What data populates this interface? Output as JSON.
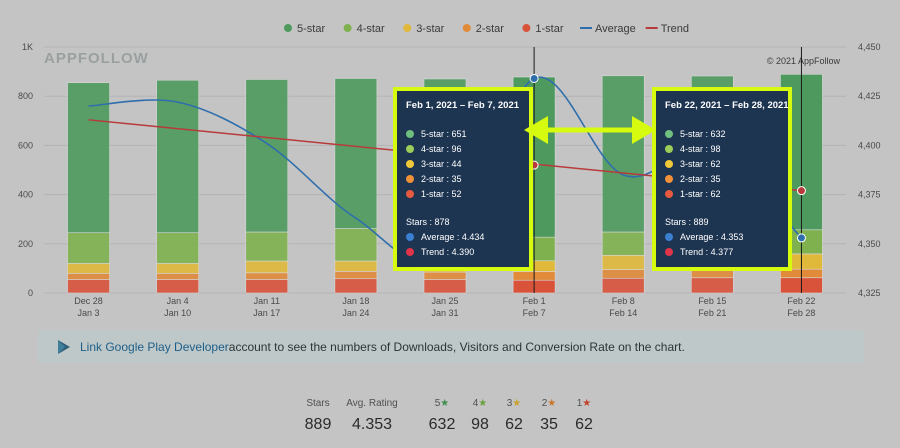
{
  "legend": [
    {
      "label": "5-star",
      "color": "#4e9a5e",
      "kind": "dot"
    },
    {
      "label": "4-star",
      "color": "#7fb24f",
      "kind": "dot"
    },
    {
      "label": "3-star",
      "color": "#e0b93a",
      "kind": "dot"
    },
    {
      "label": "2-star",
      "color": "#e08a3a",
      "kind": "dot"
    },
    {
      "label": "1-star",
      "color": "#d9533b",
      "kind": "dot"
    },
    {
      "label": "Average",
      "color": "#2f6ead",
      "kind": "line"
    },
    {
      "label": "Trend",
      "color": "#b83a3a",
      "kind": "line"
    }
  ],
  "brand": "APPFOLLOW",
  "copyright": "© 2021 AppFollow",
  "chart_data": {
    "type": "bar",
    "stacked": true,
    "categories": [
      [
        "Dec 28",
        "Jan 3"
      ],
      [
        "Jan 4",
        "Jan 10"
      ],
      [
        "Jan 11",
        "Jan 17"
      ],
      [
        "Jan 18",
        "Jan 24"
      ],
      [
        "Jan 25",
        "Jan 31"
      ],
      [
        "Feb 1",
        "Feb 7"
      ],
      [
        "Feb 8",
        "Feb 14"
      ],
      [
        "Feb 15",
        "Feb 21"
      ],
      [
        "Feb 22",
        "Feb 28"
      ]
    ],
    "series": [
      {
        "name": "1-star",
        "color": "#d9533b",
        "values": [
          55,
          55,
          55,
          58,
          55,
          52,
          60,
          62,
          62
        ]
      },
      {
        "name": "2-star",
        "color": "#e08a3a",
        "values": [
          25,
          25,
          27,
          30,
          30,
          35,
          35,
          35,
          35
        ]
      },
      {
        "name": "3-star",
        "color": "#e0b93a",
        "values": [
          40,
          40,
          48,
          42,
          45,
          44,
          58,
          60,
          62
        ]
      },
      {
        "name": "4-star",
        "color": "#7fb24f",
        "values": [
          125,
          125,
          118,
          132,
          110,
          96,
          95,
          95,
          98
        ]
      },
      {
        "name": "5-star",
        "color": "#4e9a5e",
        "values": [
          610,
          620,
          620,
          610,
          630,
          651,
          635,
          630,
          632
        ]
      }
    ],
    "average": {
      "name": "Average",
      "color": "#2f6ead",
      "values": [
        4.42,
        4.422,
        4.401,
        4.363,
        4.343,
        4.434,
        4.385,
        4.398,
        4.353
      ]
    },
    "trend": {
      "name": "Trend",
      "color": "#b83a3a",
      "values": [
        4.413,
        4.41,
        4.406,
        4.402,
        4.396,
        4.39,
        4.386,
        4.382,
        4.377
      ]
    },
    "ylim": [
      0,
      1000
    ],
    "yticks": [
      "0",
      "200",
      "400",
      "600",
      "800",
      "1K"
    ],
    "yticks_values": [
      0,
      200,
      400,
      600,
      800,
      1000
    ],
    "y2lim": [
      4.325,
      4.45
    ],
    "y2ticks": [
      "4,325",
      "4,350",
      "4,375",
      "4,400",
      "4,425",
      "4,450"
    ],
    "y2ticks_values": [
      4.325,
      4.35,
      4.375,
      4.4,
      4.425,
      4.45
    ],
    "highlight_indices": [
      5,
      8
    ]
  },
  "tooltips": [
    {
      "date": "Feb 1, 2021 – Feb 7, 2021",
      "rows": [
        {
          "label": "5-star : 651",
          "color": "#6fbf7f"
        },
        {
          "label": "4-star : 96",
          "color": "#9ccc5a"
        },
        {
          "label": "3-star : 44",
          "color": "#f0c93a"
        },
        {
          "label": "2-star : 35",
          "color": "#f0913a"
        },
        {
          "label": "1-star : 52",
          "color": "#e85a40"
        }
      ],
      "stars": "Stars : 878",
      "average": {
        "label": "Average : 4.434",
        "color": "#3a7fd0"
      },
      "trend": {
        "label": "Trend : 4.390",
        "color": "#e0344a"
      }
    },
    {
      "date": "Feb 22, 2021 – Feb 28, 2021",
      "rows": [
        {
          "label": "5-star : 632",
          "color": "#6fbf7f"
        },
        {
          "label": "4-star : 98",
          "color": "#9ccc5a"
        },
        {
          "label": "3-star : 62",
          "color": "#f0c93a"
        },
        {
          "label": "2-star : 35",
          "color": "#f0913a"
        },
        {
          "label": "1-star : 62",
          "color": "#e85a40"
        }
      ],
      "stars": "Stars : 889",
      "average": {
        "label": "Average : 4.353",
        "color": "#3a7fd0"
      },
      "trend": {
        "label": "Trend : 4.377",
        "color": "#e0344a"
      }
    }
  ],
  "infobar": {
    "link": "Link Google Play Developer",
    "text": " account to see the numbers of Downloads, Visitors and Conversion Rate on the chart."
  },
  "summary": {
    "stars_label": "Stars",
    "stars_value": "889",
    "avg_label": "Avg. Rating",
    "avg_value": "4.353",
    "breakdown": [
      {
        "label": "5",
        "star_color": "#3f8f50",
        "value": "632"
      },
      {
        "label": "4",
        "star_color": "#6c9f3e",
        "value": "98"
      },
      {
        "label": "3",
        "star_color": "#c9a22e",
        "value": "62"
      },
      {
        "label": "2",
        "star_color": "#c9772e",
        "value": "35"
      },
      {
        "label": "1",
        "star_color": "#c24430",
        "value": "62"
      }
    ]
  }
}
